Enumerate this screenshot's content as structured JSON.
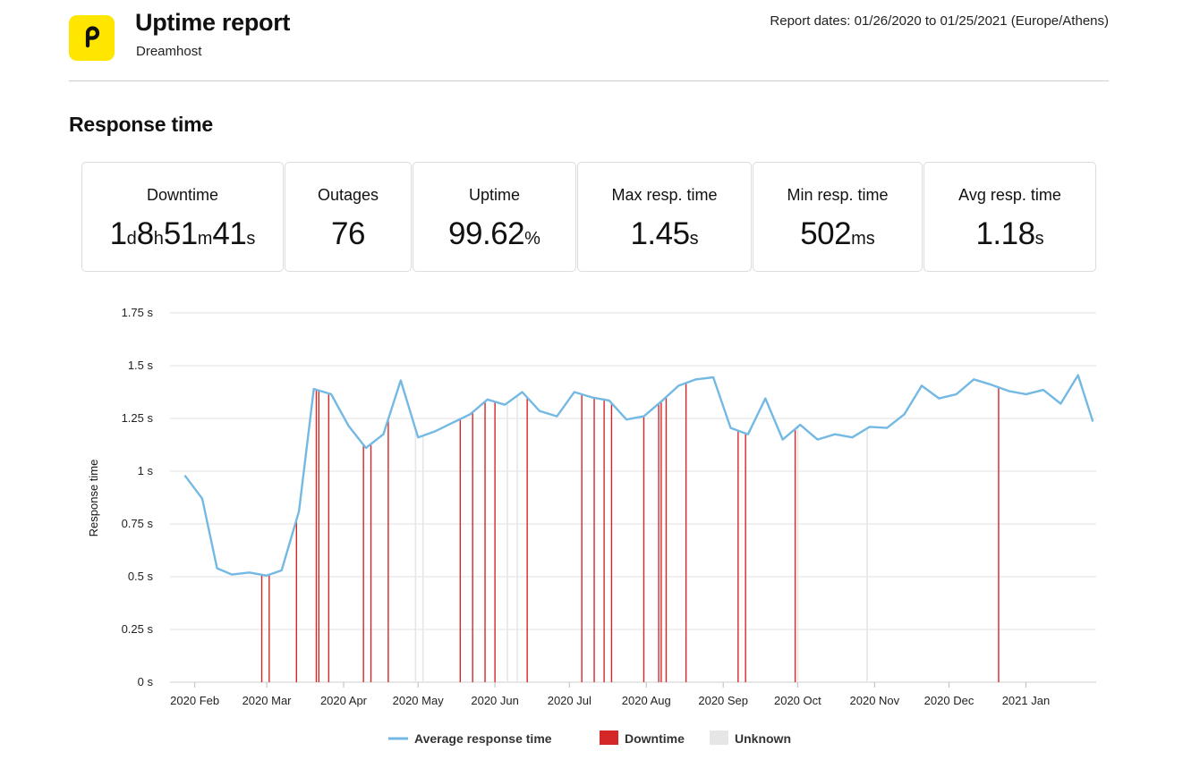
{
  "header": {
    "title": "Uptime report",
    "subtitle": "Dreamhost",
    "report_dates": "Report dates: 01/26/2020 to 01/25/2021 (Europe/Athens)",
    "logo_icon": "p-letter-logo-icon",
    "logo_color": "#ffe600"
  },
  "section_title": "Response time",
  "stats": [
    {
      "label": "Downtime",
      "parts": [
        [
          "1",
          ""
        ],
        [
          "d",
          "u"
        ],
        [
          "8",
          ""
        ],
        [
          "h",
          "u"
        ],
        [
          "51",
          ""
        ],
        [
          "m",
          "u"
        ],
        [
          "41",
          ""
        ],
        [
          "s",
          "u"
        ]
      ]
    },
    {
      "label": "Outages",
      "parts": [
        [
          "76",
          ""
        ]
      ]
    },
    {
      "label": "Uptime",
      "parts": [
        [
          "99.62",
          ""
        ],
        [
          "%",
          "u"
        ]
      ]
    },
    {
      "label": "Max resp. time",
      "parts": [
        [
          "1.45",
          ""
        ],
        [
          "s",
          "u"
        ]
      ]
    },
    {
      "label": "Min resp. time",
      "parts": [
        [
          "502",
          ""
        ],
        [
          "ms",
          "u"
        ]
      ]
    },
    {
      "label": "Avg resp. time",
      "parts": [
        [
          "1.18",
          ""
        ],
        [
          "s",
          "u"
        ]
      ]
    }
  ],
  "chart_data": {
    "type": "line",
    "ylabel": "Response time",
    "xlabel": "",
    "ylim": [
      0,
      1.75
    ],
    "yticks": [
      {
        "value": 0,
        "label": "0 s"
      },
      {
        "value": 0.25,
        "label": "0.25 s"
      },
      {
        "value": 0.5,
        "label": "0.5 s"
      },
      {
        "value": 0.75,
        "label": "0.75 s"
      },
      {
        "value": 1,
        "label": "1 s"
      },
      {
        "value": 1.25,
        "label": "1.25 s"
      },
      {
        "value": 1.5,
        "label": "1.5 s"
      },
      {
        "value": 1.75,
        "label": "1.75 s"
      }
    ],
    "xlim": [
      "2020-01-26",
      "2021-01-25"
    ],
    "xticks": [
      {
        "date": "2020-02-01",
        "label": "2020 Feb"
      },
      {
        "date": "2020-03-01",
        "label": "2020 Mar"
      },
      {
        "date": "2020-04-01",
        "label": "2020 Apr"
      },
      {
        "date": "2020-05-01",
        "label": "2020 May"
      },
      {
        "date": "2020-06-01",
        "label": "2020 Jun"
      },
      {
        "date": "2020-07-01",
        "label": "2020 Jul"
      },
      {
        "date": "2020-08-01",
        "label": "2020 Aug"
      },
      {
        "date": "2020-09-01",
        "label": "2020 Sep"
      },
      {
        "date": "2020-10-01",
        "label": "2020 Oct"
      },
      {
        "date": "2020-11-01",
        "label": "2020 Nov"
      },
      {
        "date": "2020-12-01",
        "label": "2020 Dec"
      },
      {
        "date": "2021-01-01",
        "label": "2021 Jan"
      }
    ],
    "grid": true,
    "legend_position": "bottom-center",
    "series": [
      {
        "name": "Average response time",
        "color": "#74b9e3",
        "points": [
          [
            "2020-01-28",
            0.98
          ],
          [
            "2020-02-04",
            0.87
          ],
          [
            "2020-02-10",
            0.54
          ],
          [
            "2020-02-16",
            0.51
          ],
          [
            "2020-02-23",
            0.52
          ],
          [
            "2020-03-01",
            0.505
          ],
          [
            "2020-03-07",
            0.53
          ],
          [
            "2020-03-14",
            0.81
          ],
          [
            "2020-03-20",
            1.39
          ],
          [
            "2020-03-27",
            1.365
          ],
          [
            "2020-04-03",
            1.215
          ],
          [
            "2020-04-10",
            1.11
          ],
          [
            "2020-04-17",
            1.175
          ],
          [
            "2020-04-24",
            1.43
          ],
          [
            "2020-05-01",
            1.16
          ],
          [
            "2020-05-08",
            1.19
          ],
          [
            "2020-05-15",
            1.23
          ],
          [
            "2020-05-22",
            1.27
          ],
          [
            "2020-05-29",
            1.34
          ],
          [
            "2020-06-05",
            1.315
          ],
          [
            "2020-06-12",
            1.375
          ],
          [
            "2020-06-19",
            1.285
          ],
          [
            "2020-06-26",
            1.26
          ],
          [
            "2020-07-03",
            1.375
          ],
          [
            "2020-07-10",
            1.35
          ],
          [
            "2020-07-17",
            1.335
          ],
          [
            "2020-07-24",
            1.245
          ],
          [
            "2020-07-31",
            1.26
          ],
          [
            "2020-08-07",
            1.33
          ],
          [
            "2020-08-14",
            1.405
          ],
          [
            "2020-08-21",
            1.435
          ],
          [
            "2020-08-28",
            1.445
          ],
          [
            "2020-09-04",
            1.205
          ],
          [
            "2020-09-11",
            1.175
          ],
          [
            "2020-09-18",
            1.345
          ],
          [
            "2020-09-25",
            1.15
          ],
          [
            "2020-10-02",
            1.22
          ],
          [
            "2020-10-09",
            1.15
          ],
          [
            "2020-10-16",
            1.175
          ],
          [
            "2020-10-23",
            1.16
          ],
          [
            "2020-10-30",
            1.21
          ],
          [
            "2020-11-06",
            1.205
          ],
          [
            "2020-11-13",
            1.27
          ],
          [
            "2020-11-20",
            1.405
          ],
          [
            "2020-11-27",
            1.345
          ],
          [
            "2020-12-04",
            1.365
          ],
          [
            "2020-12-11",
            1.435
          ],
          [
            "2020-12-18",
            1.41
          ],
          [
            "2020-12-25",
            1.38
          ],
          [
            "2021-01-01",
            1.365
          ],
          [
            "2021-01-08",
            1.385
          ],
          [
            "2021-01-15",
            1.32
          ],
          [
            "2021-01-22",
            1.455
          ],
          [
            "2021-01-28",
            1.235
          ]
        ]
      },
      {
        "name": "Downtime",
        "color": "#d62728",
        "dates": [
          "2020-02-28",
          "2020-03-02",
          "2020-03-13",
          "2020-03-21",
          "2020-03-22",
          "2020-03-26",
          "2020-04-09",
          "2020-04-12",
          "2020-04-19",
          "2020-05-18",
          "2020-05-23",
          "2020-05-28",
          "2020-06-01",
          "2020-06-14",
          "2020-07-06",
          "2020-07-11",
          "2020-07-15",
          "2020-07-18",
          "2020-07-31",
          "2020-08-06",
          "2020-08-07",
          "2020-08-09",
          "2020-08-17",
          "2020-09-07",
          "2020-09-10",
          "2020-09-30",
          "2020-12-21"
        ]
      },
      {
        "name": "Unknown",
        "color": "#e6e6e6",
        "dates": [
          "2020-04-30",
          "2020-05-03",
          "2020-06-06",
          "2020-06-10",
          "2020-10-01",
          "2020-10-29"
        ]
      }
    ]
  }
}
